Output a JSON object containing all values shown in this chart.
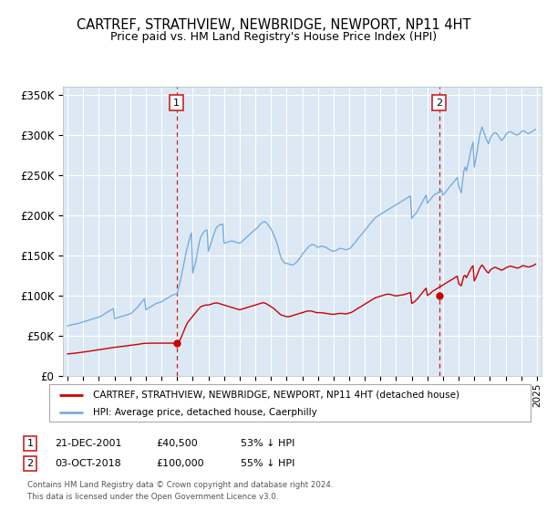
{
  "title": "CARTREF, STRATHVIEW, NEWBRIDGE, NEWPORT, NP11 4HT",
  "subtitle": "Price paid vs. HM Land Registry's House Price Index (HPI)",
  "ylim": [
    0,
    360000
  ],
  "yticks": [
    0,
    50000,
    100000,
    150000,
    200000,
    250000,
    300000,
    350000
  ],
  "ytick_labels": [
    "£0",
    "£50K",
    "£100K",
    "£150K",
    "£200K",
    "£250K",
    "£300K",
    "£350K"
  ],
  "xlim_start": 1994.7,
  "xlim_end": 2025.3,
  "background_color": "#dce9f5",
  "grid_color": "#ffffff",
  "purchase1_x": 2001.97,
  "purchase1_y": 40500,
  "purchase1_label": "1",
  "purchase1_date": "21-DEC-2001",
  "purchase1_price": "£40,500",
  "purchase1_hpi": "53% ↓ HPI",
  "purchase2_x": 2018.75,
  "purchase2_y": 100000,
  "purchase2_label": "2",
  "purchase2_date": "03-OCT-2018",
  "purchase2_price": "£100,000",
  "purchase2_hpi": "55% ↓ HPI",
  "red_line_color": "#cc0000",
  "blue_line_color": "#7aaddc",
  "vline_color": "#cc2222",
  "footer1": "Contains HM Land Registry data © Crown copyright and database right 2024.",
  "footer2": "This data is licensed under the Open Government Licence v3.0.",
  "legend_label1": "CARTREF, STRATHVIEW, NEWBRIDGE, NEWPORT, NP11 4HT (detached house)",
  "legend_label2": "HPI: Average price, detached house, Caerphilly",
  "hpi_data_x": [
    1995.0,
    1995.08,
    1995.17,
    1995.25,
    1995.33,
    1995.42,
    1995.5,
    1995.58,
    1995.67,
    1995.75,
    1995.83,
    1995.92,
    1996.0,
    1996.08,
    1996.17,
    1996.25,
    1996.33,
    1996.42,
    1996.5,
    1996.58,
    1996.67,
    1996.75,
    1996.83,
    1996.92,
    1997.0,
    1997.08,
    1997.17,
    1997.25,
    1997.33,
    1997.42,
    1997.5,
    1997.58,
    1997.67,
    1997.75,
    1997.83,
    1997.92,
    1998.0,
    1998.08,
    1998.17,
    1998.25,
    1998.33,
    1998.42,
    1998.5,
    1998.58,
    1998.67,
    1998.75,
    1998.83,
    1998.92,
    1999.0,
    1999.08,
    1999.17,
    1999.25,
    1999.33,
    1999.42,
    1999.5,
    1999.58,
    1999.67,
    1999.75,
    1999.83,
    1999.92,
    2000.0,
    2000.08,
    2000.17,
    2000.25,
    2000.33,
    2000.42,
    2000.5,
    2000.58,
    2000.67,
    2000.75,
    2000.83,
    2000.92,
    2001.0,
    2001.08,
    2001.17,
    2001.25,
    2001.33,
    2001.42,
    2001.5,
    2001.58,
    2001.67,
    2001.75,
    2001.83,
    2001.92,
    2002.0,
    2002.08,
    2002.17,
    2002.25,
    2002.33,
    2002.42,
    2002.5,
    2002.58,
    2002.67,
    2002.75,
    2002.83,
    2002.92,
    2003.0,
    2003.08,
    2003.17,
    2003.25,
    2003.33,
    2003.42,
    2003.5,
    2003.58,
    2003.67,
    2003.75,
    2003.83,
    2003.92,
    2004.0,
    2004.08,
    2004.17,
    2004.25,
    2004.33,
    2004.42,
    2004.5,
    2004.58,
    2004.67,
    2004.75,
    2004.83,
    2004.92,
    2005.0,
    2005.08,
    2005.17,
    2005.25,
    2005.33,
    2005.42,
    2005.5,
    2005.58,
    2005.67,
    2005.75,
    2005.83,
    2005.92,
    2006.0,
    2006.08,
    2006.17,
    2006.25,
    2006.33,
    2006.42,
    2006.5,
    2006.58,
    2006.67,
    2006.75,
    2006.83,
    2006.92,
    2007.0,
    2007.08,
    2007.17,
    2007.25,
    2007.33,
    2007.42,
    2007.5,
    2007.58,
    2007.67,
    2007.75,
    2007.83,
    2007.92,
    2008.0,
    2008.08,
    2008.17,
    2008.25,
    2008.33,
    2008.42,
    2008.5,
    2008.58,
    2008.67,
    2008.75,
    2008.83,
    2008.92,
    2009.0,
    2009.08,
    2009.17,
    2009.25,
    2009.33,
    2009.42,
    2009.5,
    2009.58,
    2009.67,
    2009.75,
    2009.83,
    2009.92,
    2010.0,
    2010.08,
    2010.17,
    2010.25,
    2010.33,
    2010.42,
    2010.5,
    2010.58,
    2010.67,
    2010.75,
    2010.83,
    2010.92,
    2011.0,
    2011.08,
    2011.17,
    2011.25,
    2011.33,
    2011.42,
    2011.5,
    2011.58,
    2011.67,
    2011.75,
    2011.83,
    2011.92,
    2012.0,
    2012.08,
    2012.17,
    2012.25,
    2012.33,
    2012.42,
    2012.5,
    2012.58,
    2012.67,
    2012.75,
    2012.83,
    2012.92,
    2013.0,
    2013.08,
    2013.17,
    2013.25,
    2013.33,
    2013.42,
    2013.5,
    2013.58,
    2013.67,
    2013.75,
    2013.83,
    2013.92,
    2014.0,
    2014.08,
    2014.17,
    2014.25,
    2014.33,
    2014.42,
    2014.5,
    2014.58,
    2014.67,
    2014.75,
    2014.83,
    2014.92,
    2015.0,
    2015.08,
    2015.17,
    2015.25,
    2015.33,
    2015.42,
    2015.5,
    2015.58,
    2015.67,
    2015.75,
    2015.83,
    2015.92,
    2016.0,
    2016.08,
    2016.17,
    2016.25,
    2016.33,
    2016.42,
    2016.5,
    2016.58,
    2016.67,
    2016.75,
    2016.83,
    2016.92,
    2017.0,
    2017.08,
    2017.17,
    2017.25,
    2017.33,
    2017.42,
    2017.5,
    2017.58,
    2017.67,
    2017.75,
    2017.83,
    2017.92,
    2018.0,
    2018.08,
    2018.17,
    2018.25,
    2018.33,
    2018.42,
    2018.5,
    2018.58,
    2018.67,
    2018.75,
    2018.83,
    2018.92,
    2019.0,
    2019.08,
    2019.17,
    2019.25,
    2019.33,
    2019.42,
    2019.5,
    2019.58,
    2019.67,
    2019.75,
    2019.83,
    2019.92,
    2020.0,
    2020.08,
    2020.17,
    2020.25,
    2020.33,
    2020.42,
    2020.5,
    2020.58,
    2020.67,
    2020.75,
    2020.83,
    2020.92,
    2021.0,
    2021.08,
    2021.17,
    2021.25,
    2021.33,
    2021.42,
    2021.5,
    2021.58,
    2021.67,
    2021.75,
    2021.83,
    2021.92,
    2022.0,
    2022.08,
    2022.17,
    2022.25,
    2022.33,
    2022.42,
    2022.5,
    2022.58,
    2022.67,
    2022.75,
    2022.83,
    2022.92,
    2023.0,
    2023.08,
    2023.17,
    2023.25,
    2023.33,
    2023.42,
    2023.5,
    2023.58,
    2023.67,
    2023.75,
    2023.83,
    2023.92,
    2024.0,
    2024.08,
    2024.17,
    2024.25,
    2024.33,
    2024.42,
    2024.5,
    2024.58,
    2024.67,
    2024.75,
    2024.83,
    2024.92
  ],
  "hpi_data_y": [
    62000,
    62500,
    63000,
    63500,
    63800,
    64000,
    64200,
    64500,
    65000,
    65500,
    66000,
    66500,
    67000,
    67500,
    68000,
    68500,
    69000,
    69500,
    70000,
    70500,
    71000,
    71500,
    72000,
    72500,
    73000,
    73500,
    74500,
    75500,
    76500,
    77500,
    78500,
    79500,
    80500,
    81500,
    82500,
    83500,
    71000,
    71500,
    72000,
    72500,
    73000,
    73500,
    74000,
    74500,
    75000,
    75500,
    76000,
    76500,
    77000,
    78000,
    79500,
    81000,
    82500,
    84000,
    86000,
    88000,
    90000,
    92000,
    94000,
    96000,
    82000,
    83000,
    84000,
    85000,
    86000,
    87000,
    88000,
    89000,
    90000,
    90500,
    91000,
    91500,
    92000,
    93000,
    94000,
    95000,
    96000,
    97000,
    98000,
    99000,
    100000,
    100500,
    101000,
    101500,
    102000,
    108000,
    115000,
    122000,
    130000,
    138000,
    146000,
    154000,
    161000,
    167000,
    173000,
    178000,
    128000,
    134000,
    140000,
    148000,
    157000,
    166000,
    172000,
    175000,
    178000,
    180000,
    181000,
    181500,
    155000,
    160000,
    165000,
    170000,
    175000,
    180000,
    184000,
    186000,
    187000,
    188000,
    188500,
    189000,
    165000,
    165500,
    166000,
    166500,
    167000,
    167500,
    168000,
    167500,
    167000,
    166500,
    166000,
    165500,
    165000,
    166000,
    167500,
    169000,
    170500,
    172000,
    173500,
    175000,
    176500,
    178000,
    179500,
    181000,
    182000,
    183500,
    185000,
    187000,
    189000,
    190500,
    191500,
    192000,
    191000,
    189500,
    187500,
    185000,
    183000,
    180000,
    176000,
    172000,
    168000,
    163000,
    157000,
    151000,
    146000,
    143000,
    141000,
    140000,
    140000,
    139500,
    139000,
    138500,
    138000,
    138000,
    139000,
    140500,
    142000,
    144000,
    146000,
    148500,
    151000,
    153000,
    155000,
    157000,
    159000,
    161000,
    162000,
    163000,
    163500,
    163000,
    162000,
    161000,
    160000,
    160500,
    161000,
    161500,
    161000,
    160500,
    160000,
    159000,
    158000,
    157000,
    156000,
    155500,
    155000,
    155500,
    156000,
    157000,
    158000,
    158500,
    158500,
    158000,
    157500,
    157000,
    157000,
    157500,
    158000,
    159000,
    161000,
    163000,
    165000,
    167000,
    169000,
    171000,
    173000,
    175000,
    177000,
    179000,
    181000,
    183000,
    185000,
    187000,
    189000,
    191000,
    193000,
    195000,
    197000,
    198000,
    199000,
    200000,
    201000,
    202000,
    203000,
    204000,
    205000,
    206000,
    207000,
    208000,
    209000,
    210000,
    211000,
    212000,
    213000,
    214000,
    215000,
    216000,
    217000,
    218000,
    219000,
    220000,
    221000,
    222000,
    223000,
    224000,
    196000,
    198000,
    200000,
    202000,
    204000,
    207000,
    210000,
    213000,
    216000,
    219000,
    222000,
    225000,
    215000,
    217000,
    219000,
    221000,
    223000,
    225000,
    226000,
    227000,
    228000,
    229000,
    230000,
    231000,
    225000,
    227000,
    229000,
    231000,
    233000,
    235000,
    237000,
    239000,
    241000,
    243000,
    245000,
    247000,
    237000,
    232000,
    228000,
    241000,
    255000,
    260000,
    255000,
    262000,
    270000,
    278000,
    285000,
    291000,
    260000,
    268000,
    278000,
    288000,
    298000,
    305000,
    310000,
    305000,
    300000,
    296000,
    292000,
    289000,
    295000,
    298000,
    300000,
    302000,
    303000,
    302000,
    300000,
    298000,
    295000,
    293000,
    295000,
    297000,
    300000,
    302000,
    303000,
    304000,
    304000,
    303000,
    302000,
    301000,
    300000,
    300000,
    301000,
    302000,
    304000,
    305000,
    305000,
    304000,
    303000,
    302000,
    302000,
    303000,
    304000,
    305000,
    306000,
    307000
  ],
  "red_data_x": [
    1995.0,
    1995.08,
    1995.17,
    1995.25,
    1995.33,
    1995.42,
    1995.5,
    1995.58,
    1995.67,
    1995.75,
    1995.83,
    1995.92,
    1996.0,
    1996.08,
    1996.17,
    1996.25,
    1996.33,
    1996.42,
    1996.5,
    1996.58,
    1996.67,
    1996.75,
    1996.83,
    1996.92,
    1997.0,
    1997.08,
    1997.17,
    1997.25,
    1997.33,
    1997.42,
    1997.5,
    1997.58,
    1997.67,
    1997.75,
    1997.83,
    1997.92,
    1998.0,
    1998.08,
    1998.17,
    1998.25,
    1998.33,
    1998.42,
    1998.5,
    1998.58,
    1998.67,
    1998.75,
    1998.83,
    1998.92,
    1999.0,
    1999.08,
    1999.17,
    1999.25,
    1999.33,
    1999.42,
    1999.5,
    1999.58,
    1999.67,
    1999.75,
    1999.83,
    1999.92,
    2000.0,
    2000.08,
    2000.17,
    2000.25,
    2000.33,
    2000.42,
    2000.5,
    2000.58,
    2000.67,
    2000.75,
    2000.83,
    2000.92,
    2001.0,
    2001.08,
    2001.17,
    2001.25,
    2001.33,
    2001.42,
    2001.5,
    2001.58,
    2001.67,
    2001.75,
    2001.83,
    2001.92,
    2001.97,
    2002.0,
    2002.08,
    2002.17,
    2002.25,
    2002.33,
    2002.42,
    2002.5,
    2002.58,
    2002.67,
    2002.75,
    2002.83,
    2002.92,
    2003.0,
    2003.08,
    2003.17,
    2003.25,
    2003.33,
    2003.42,
    2003.5,
    2003.58,
    2003.67,
    2003.75,
    2003.83,
    2003.92,
    2004.0,
    2004.08,
    2004.17,
    2004.25,
    2004.33,
    2004.42,
    2004.5,
    2004.58,
    2004.67,
    2004.75,
    2004.83,
    2004.92,
    2005.0,
    2005.08,
    2005.17,
    2005.25,
    2005.33,
    2005.42,
    2005.5,
    2005.58,
    2005.67,
    2005.75,
    2005.83,
    2005.92,
    2006.0,
    2006.08,
    2006.17,
    2006.25,
    2006.33,
    2006.42,
    2006.5,
    2006.58,
    2006.67,
    2006.75,
    2006.83,
    2006.92,
    2007.0,
    2007.08,
    2007.17,
    2007.25,
    2007.33,
    2007.42,
    2007.5,
    2007.58,
    2007.67,
    2007.75,
    2007.83,
    2007.92,
    2008.0,
    2008.08,
    2008.17,
    2008.25,
    2008.33,
    2008.42,
    2008.5,
    2008.58,
    2008.67,
    2008.75,
    2008.83,
    2008.92,
    2009.0,
    2009.08,
    2009.17,
    2009.25,
    2009.33,
    2009.42,
    2009.5,
    2009.58,
    2009.67,
    2009.75,
    2009.83,
    2009.92,
    2010.0,
    2010.08,
    2010.17,
    2010.25,
    2010.33,
    2010.42,
    2010.5,
    2010.58,
    2010.67,
    2010.75,
    2010.83,
    2010.92,
    2011.0,
    2011.08,
    2011.17,
    2011.25,
    2011.33,
    2011.42,
    2011.5,
    2011.58,
    2011.67,
    2011.75,
    2011.83,
    2011.92,
    2012.0,
    2012.08,
    2012.17,
    2012.25,
    2012.33,
    2012.42,
    2012.5,
    2012.58,
    2012.67,
    2012.75,
    2012.83,
    2012.92,
    2013.0,
    2013.08,
    2013.17,
    2013.25,
    2013.33,
    2013.42,
    2013.5,
    2013.58,
    2013.67,
    2013.75,
    2013.83,
    2013.92,
    2014.0,
    2014.08,
    2014.17,
    2014.25,
    2014.33,
    2014.42,
    2014.5,
    2014.58,
    2014.67,
    2014.75,
    2014.83,
    2014.92,
    2015.0,
    2015.08,
    2015.17,
    2015.25,
    2015.33,
    2015.42,
    2015.5,
    2015.58,
    2015.67,
    2015.75,
    2015.83,
    2015.92,
    2016.0,
    2016.08,
    2016.17,
    2016.25,
    2016.33,
    2016.42,
    2016.5,
    2016.58,
    2016.67,
    2016.75,
    2016.83,
    2016.92,
    2017.0,
    2017.08,
    2017.17,
    2017.25,
    2017.33,
    2017.42,
    2017.5,
    2017.58,
    2017.67,
    2017.75,
    2017.83,
    2017.92,
    2018.0,
    2018.08,
    2018.17,
    2018.25,
    2018.33,
    2018.42,
    2018.5,
    2018.58,
    2018.67,
    2018.75,
    2018.83,
    2018.92,
    2019.0,
    2019.08,
    2019.17,
    2019.25,
    2019.33,
    2019.42,
    2019.5,
    2019.58,
    2019.67,
    2019.75,
    2019.83,
    2019.92,
    2020.0,
    2020.08,
    2020.17,
    2020.25,
    2020.33,
    2020.42,
    2020.5,
    2020.58,
    2020.67,
    2020.75,
    2020.83,
    2020.92,
    2021.0,
    2021.08,
    2021.17,
    2021.25,
    2021.33,
    2021.42,
    2021.5,
    2021.58,
    2021.67,
    2021.75,
    2021.83,
    2021.92,
    2022.0,
    2022.08,
    2022.17,
    2022.25,
    2022.33,
    2022.42,
    2022.5,
    2022.58,
    2022.67,
    2022.75,
    2022.83,
    2022.92,
    2023.0,
    2023.08,
    2023.17,
    2023.25,
    2023.33,
    2023.42,
    2023.5,
    2023.58,
    2023.67,
    2023.75,
    2023.83,
    2023.92,
    2024.0,
    2024.08,
    2024.17,
    2024.25,
    2024.33,
    2024.42,
    2024.5,
    2024.58,
    2024.67,
    2024.75,
    2024.83,
    2024.92
  ],
  "red_data_y": [
    27000,
    27200,
    27300,
    27500,
    27600,
    27800,
    28000,
    28200,
    28400,
    28600,
    28800,
    29000,
    29200,
    29500,
    29800,
    30000,
    30200,
    30500,
    30800,
    31000,
    31200,
    31500,
    31800,
    32000,
    32200,
    32500,
    32800,
    33000,
    33200,
    33500,
    33800,
    34000,
    34200,
    34500,
    34800,
    35000,
    35200,
    35400,
    35600,
    35800,
    36000,
    36200,
    36400,
    36600,
    36800,
    37000,
    37200,
    37400,
    37600,
    37800,
    38000,
    38200,
    38500,
    38800,
    39000,
    39200,
    39500,
    39800,
    40000,
    40200,
    40200,
    40300,
    40300,
    40400,
    40400,
    40400,
    40400,
    40400,
    40400,
    40400,
    40400,
    40400,
    40400,
    40400,
    40400,
    40450,
    40450,
    40450,
    40450,
    40450,
    40450,
    40450,
    40450,
    40450,
    40500,
    40500,
    42000,
    44000,
    47000,
    51000,
    55000,
    59000,
    62500,
    66000,
    68000,
    70000,
    72000,
    74000,
    76000,
    78000,
    80000,
    82000,
    84000,
    85500,
    86500,
    87000,
    87500,
    88000,
    88000,
    88000,
    88500,
    89000,
    89500,
    90000,
    90500,
    90500,
    90500,
    90000,
    89500,
    89000,
    88500,
    88000,
    87500,
    87000,
    86500,
    86000,
    85500,
    85000,
    84500,
    84000,
    83500,
    83000,
    82500,
    82000,
    82500,
    83000,
    83500,
    84000,
    84500,
    85000,
    85500,
    86000,
    86500,
    87000,
    87500,
    88000,
    88500,
    89000,
    89500,
    90000,
    90500,
    91000,
    90500,
    90000,
    89000,
    88000,
    87000,
    86000,
    85000,
    84000,
    82500,
    81000,
    79500,
    78000,
    76500,
    75500,
    75000,
    74500,
    74000,
    73500,
    73500,
    73500,
    74000,
    74500,
    75000,
    75500,
    76000,
    76500,
    77000,
    77500,
    78000,
    78500,
    79000,
    79500,
    80000,
    80500,
    80500,
    80500,
    80500,
    80000,
    79500,
    79000,
    78500,
    78500,
    78500,
    78500,
    78500,
    78000,
    78000,
    77500,
    77500,
    77000,
    77000,
    76500,
    76500,
    76500,
    76500,
    77000,
    77000,
    77500,
    77500,
    77500,
    77500,
    77000,
    77000,
    77000,
    77500,
    78000,
    78500,
    79000,
    80000,
    81000,
    82000,
    83000,
    84000,
    85000,
    86000,
    87000,
    88000,
    89000,
    90000,
    91000,
    92000,
    93000,
    94000,
    95000,
    96000,
    97000,
    97500,
    98000,
    98500,
    99000,
    99500,
    100000,
    100500,
    101000,
    101500,
    101500,
    101500,
    101000,
    100500,
    100000,
    99500,
    99500,
    99500,
    100000,
    100000,
    100500,
    100500,
    101000,
    101500,
    102000,
    102500,
    103000,
    103500,
    90000,
    91000,
    92000,
    93500,
    95000,
    97000,
    99000,
    101000,
    103000,
    105000,
    107000,
    109000,
    100000,
    101000,
    102000,
    103500,
    105000,
    106000,
    107000,
    108000,
    109000,
    110000,
    111000,
    112000,
    113000,
    114000,
    115000,
    116000,
    117000,
    118000,
    119000,
    120000,
    121000,
    122000,
    123000,
    124000,
    115000,
    113000,
    112000,
    118000,
    124000,
    125000,
    122000,
    125000,
    129000,
    132000,
    135000,
    137000,
    118000,
    121000,
    125000,
    129000,
    133000,
    136000,
    138000,
    136000,
    133000,
    131000,
    129000,
    128000,
    131000,
    132500,
    133500,
    134500,
    135000,
    134500,
    133500,
    133000,
    132000,
    131500,
    132000,
    133000,
    134000,
    135000,
    135500,
    136000,
    136500,
    136000,
    135500,
    135000,
    134500,
    134000,
    134500,
    135000,
    136000,
    137000,
    137000,
    136500,
    136000,
    135500,
    135500,
    136000,
    136500,
    137000,
    138000,
    139000
  ]
}
